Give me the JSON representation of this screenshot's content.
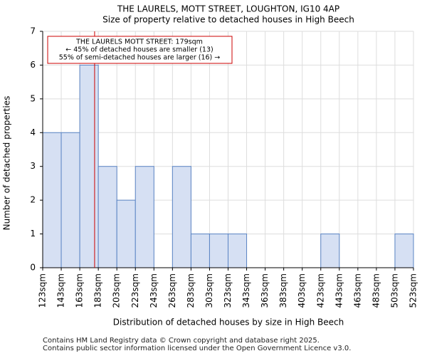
{
  "chart_data": {
    "type": "bar",
    "title_line1": "THE LAURELS, MOTT STREET, LOUGHTON, IG10 4AP",
    "title_line2": "Size of property relative to detached houses in High Beech",
    "xlabel": "Distribution of detached houses by size in High Beech",
    "ylabel": "Number of detached properties",
    "bin_edges": [
      123,
      143,
      163,
      183,
      203,
      223,
      243,
      263,
      283,
      303,
      323,
      343,
      363,
      383,
      403,
      423,
      443,
      463,
      483,
      503,
      523
    ],
    "x_tick_labels": [
      "123sqm",
      "143sqm",
      "163sqm",
      "183sqm",
      "203sqm",
      "223sqm",
      "243sqm",
      "263sqm",
      "283sqm",
      "303sqm",
      "323sqm",
      "343sqm",
      "363sqm",
      "383sqm",
      "403sqm",
      "423sqm",
      "443sqm",
      "463sqm",
      "483sqm",
      "503sqm",
      "523sqm"
    ],
    "values": [
      4,
      4,
      6,
      3,
      2,
      3,
      0,
      3,
      1,
      1,
      1,
      0,
      0,
      0,
      0,
      1,
      0,
      0,
      0,
      1
    ],
    "ylim": [
      0,
      7
    ],
    "y_ticks": [
      0,
      1,
      2,
      3,
      4,
      5,
      6,
      7
    ],
    "grid": true,
    "bar_fill": "#d6e0f3",
    "bar_edge": "#5a84c4",
    "marker": {
      "value": 179,
      "color": "#cc0000"
    },
    "annotation": {
      "lines": [
        "THE LAURELS MOTT STREET: 179sqm",
        "← 45% of detached houses are smaller (13)",
        "55% of semi-detached houses are larger (16) →"
      ],
      "border_color": "#cc0000"
    }
  },
  "footer": {
    "line1": "Contains HM Land Registry data © Crown copyright and database right 2025.",
    "line2": "Contains public sector information licensed under the Open Government Licence v3.0."
  }
}
